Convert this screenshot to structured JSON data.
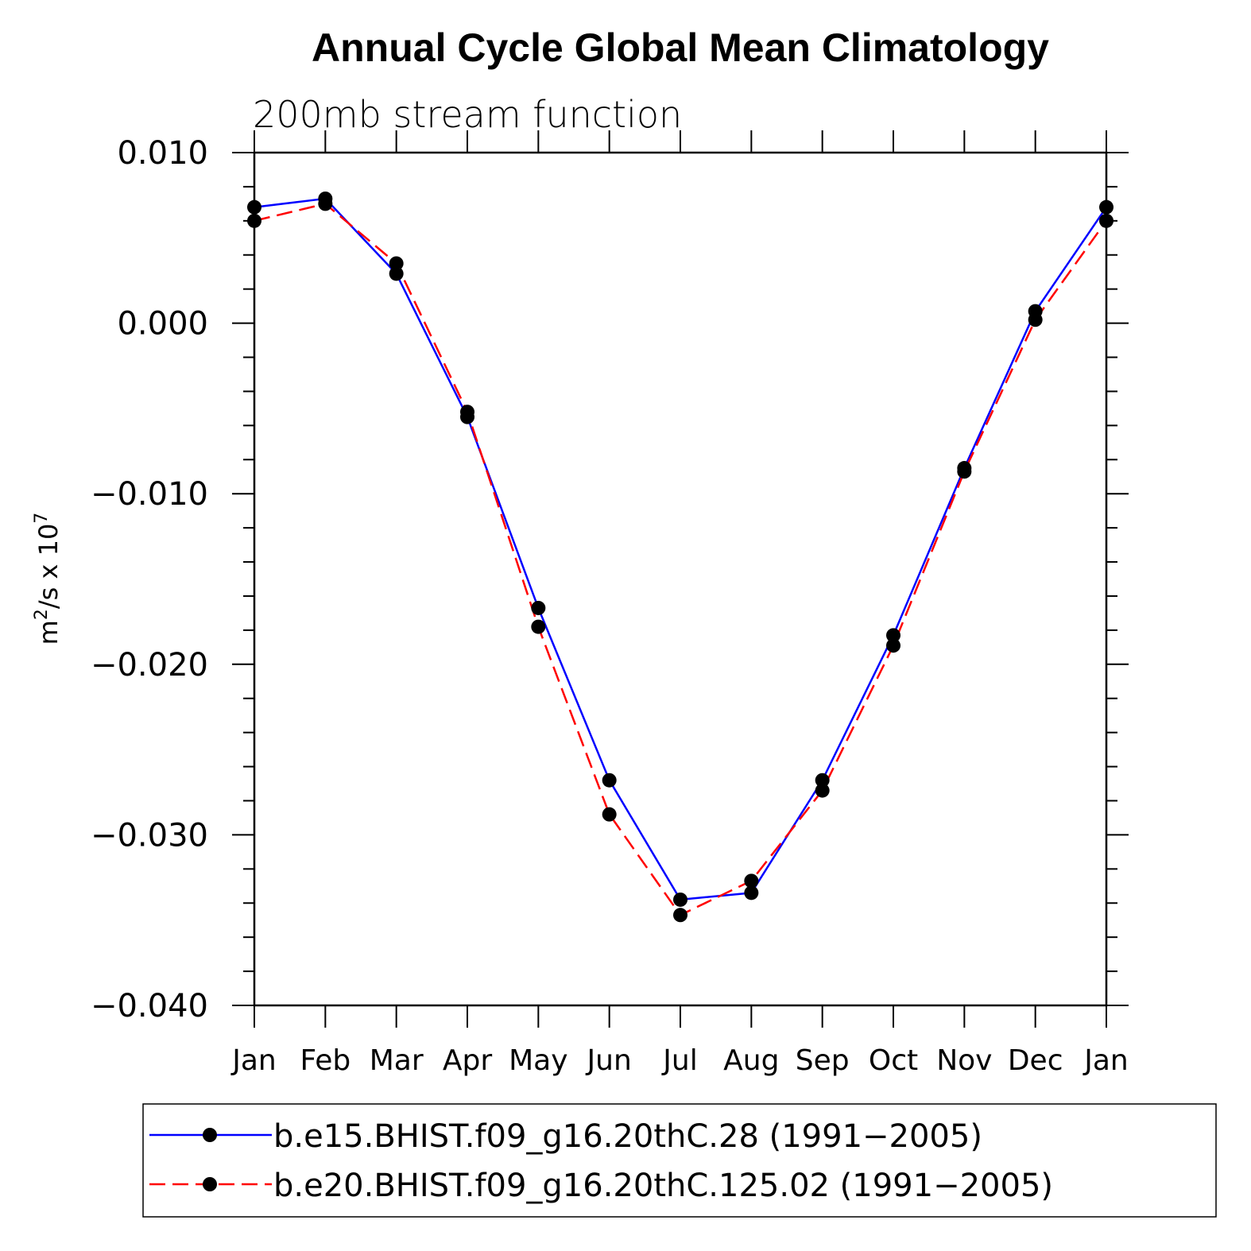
{
  "chart_data": {
    "type": "line",
    "title": "Annual Cycle Global Mean Climatology",
    "subtitle": "200mb stream function",
    "ylabel": "m²/s x 10⁷",
    "ylabel_base": "m",
    "ylabel_sup1": "2",
    "ylabel_mid": "/s x 10",
    "ylabel_sup2": "7",
    "xlabel": "",
    "ylim": [
      -0.04,
      0.01
    ],
    "yticks": [
      0.01,
      0.0,
      -0.01,
      -0.02,
      -0.03,
      -0.04
    ],
    "ytick_labels": [
      "0.010",
      "0.000",
      "−0.010",
      "−0.020",
      "−0.030",
      "−0.040"
    ],
    "categories": [
      "Jan",
      "Feb",
      "Mar",
      "Apr",
      "May",
      "Jun",
      "Jul",
      "Aug",
      "Sep",
      "Oct",
      "Nov",
      "Dec",
      "Jan"
    ],
    "series": [
      {
        "name": "b.e15.BHIST.f09_g16.20thC.28 (1991−2005)",
        "color": "#0000ff",
        "dash": "solid",
        "values": [
          0.0068,
          0.0073,
          0.0029,
          -0.0055,
          -0.0167,
          -0.0268,
          -0.0338,
          -0.0334,
          -0.0268,
          -0.0183,
          -0.0085,
          0.0007,
          0.0068
        ]
      },
      {
        "name": "b.e20.BHIST.f09_g16.20thC.125.02 (1991−2005)",
        "color": "#ff0000",
        "dash": "dashed",
        "values": [
          0.006,
          0.007,
          0.0035,
          -0.0052,
          -0.0178,
          -0.0288,
          -0.0347,
          -0.0327,
          -0.0274,
          -0.0189,
          -0.0087,
          0.0002,
          0.006
        ]
      }
    ],
    "marker": "filled-circle",
    "marker_color": "#000000",
    "legend_placement": "bottom"
  }
}
